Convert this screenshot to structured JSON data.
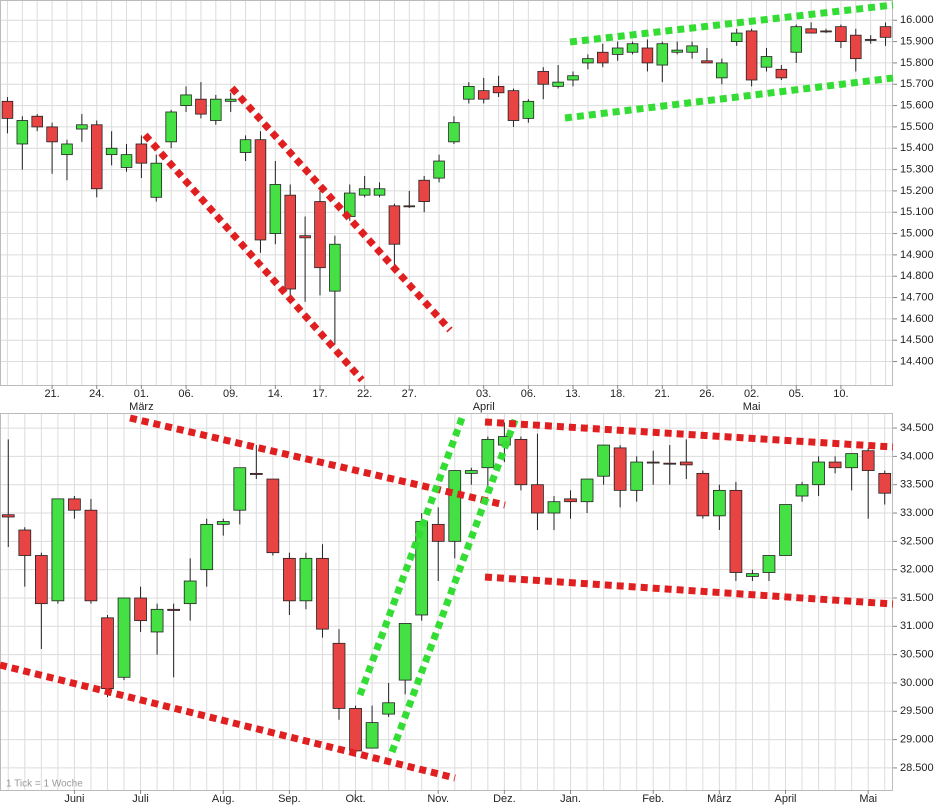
{
  "chart_data": [
    {
      "type": "candlestick",
      "up_color": "#44e044",
      "down_color": "#e84444",
      "grid": true,
      "categories": [
        null,
        null,
        null,
        "21.",
        null,
        null,
        "24.",
        null,
        null,
        "01.",
        null,
        null,
        "06.",
        null,
        null,
        "09.",
        null,
        null,
        "14.",
        null,
        null,
        "17.",
        null,
        null,
        "22.",
        null,
        null,
        "27.",
        null,
        null,
        null,
        null,
        "03.",
        null,
        null,
        "06.",
        null,
        null,
        "13.",
        null,
        null,
        "18.",
        null,
        null,
        "21.",
        null,
        null,
        "26.",
        null,
        null,
        "02.",
        null,
        null,
        "05.",
        null,
        null,
        "10.",
        null,
        null,
        null
      ],
      "x_sublabels": [
        null,
        null,
        null,
        null,
        null,
        null,
        null,
        null,
        null,
        "März",
        null,
        null,
        null,
        null,
        null,
        null,
        null,
        null,
        null,
        null,
        null,
        null,
        null,
        null,
        null,
        null,
        null,
        null,
        null,
        null,
        null,
        null,
        "April",
        null,
        null,
        null,
        null,
        null,
        null,
        null,
        null,
        null,
        null,
        null,
        null,
        null,
        null,
        null,
        null,
        null,
        "Mai",
        null,
        null,
        null,
        null,
        null,
        null,
        null,
        null,
        null
      ],
      "open": [
        15620,
        15420,
        15550,
        15500,
        15370,
        15490,
        15510,
        15370,
        15310,
        15420,
        15170,
        15430,
        15600,
        15630,
        15530,
        15620,
        15380,
        15440,
        15000,
        15180,
        14990,
        15150,
        14730,
        15080,
        15180,
        15180,
        15130,
        15130,
        15250,
        15260,
        15430,
        15630,
        15670,
        15690,
        15670,
        15540,
        15760,
        15690,
        15720,
        15800,
        15850,
        15840,
        15850,
        15870,
        15790,
        15850,
        15850,
        15810,
        15730,
        15900,
        15950,
        15780,
        15770,
        15850,
        15960,
        15950,
        15970,
        15930,
        15910,
        15970
      ],
      "high": [
        15640,
        15550,
        15560,
        15520,
        15440,
        15560,
        15530,
        15480,
        15420,
        15460,
        15370,
        15580,
        15690,
        15710,
        15650,
        15660,
        15460,
        15480,
        15340,
        15230,
        15080,
        15200,
        14990,
        15230,
        15270,
        15240,
        15140,
        15200,
        15270,
        15370,
        15550,
        15710,
        15730,
        15740,
        15680,
        15630,
        15780,
        15790,
        15760,
        15840,
        15890,
        15900,
        15900,
        15910,
        15900,
        15900,
        15900,
        15870,
        15820,
        15960,
        15960,
        15870,
        15790,
        15980,
        15990,
        15960,
        15980,
        15960,
        15930,
        15990
      ],
      "low": [
        15470,
        15300,
        15480,
        15280,
        15250,
        15430,
        15170,
        15320,
        15290,
        15260,
        15150,
        15400,
        15570,
        15540,
        15510,
        15570,
        15340,
        14910,
        14950,
        14710,
        14680,
        14710,
        14480,
        15060,
        15170,
        15170,
        14840,
        15120,
        15100,
        15240,
        15420,
        15610,
        15610,
        15640,
        15500,
        15520,
        15630,
        15680,
        15690,
        15770,
        15780,
        15810,
        15840,
        15760,
        15710,
        15840,
        15820,
        15800,
        15700,
        15880,
        15690,
        15760,
        15720,
        15800,
        15940,
        15940,
        15870,
        15760,
        15890,
        15880
      ],
      "close": [
        15540,
        15530,
        15500,
        15430,
        15420,
        15510,
        15210,
        15400,
        15370,
        15330,
        15330,
        15570,
        15650,
        15560,
        15630,
        15630,
        15440,
        14970,
        15230,
        14740,
        14980,
        14840,
        14950,
        15190,
        15210,
        15210,
        14950,
        15130,
        15150,
        15340,
        15520,
        15690,
        15630,
        15660,
        15530,
        15620,
        15700,
        15710,
        15740,
        15820,
        15800,
        15870,
        15890,
        15800,
        15890,
        15860,
        15880,
        15800,
        15800,
        15940,
        15720,
        15830,
        15730,
        15970,
        15940,
        15950,
        15900,
        15820,
        15910,
        15920
      ],
      "ylim": [
        14290,
        16095
      ],
      "yticks": [
        {
          "value": 14400,
          "label": "14.400"
        },
        {
          "value": 14500,
          "label": "14.500"
        },
        {
          "value": 14600,
          "label": "14.600"
        },
        {
          "value": 14700,
          "label": "14.700"
        },
        {
          "value": 14800,
          "label": "14.800"
        },
        {
          "value": 14900,
          "label": "14.900"
        },
        {
          "value": 15000,
          "label": "15.000"
        },
        {
          "value": 15100,
          "label": "15.100"
        },
        {
          "value": 15200,
          "label": "15.200"
        },
        {
          "value": 15300,
          "label": "15.300"
        },
        {
          "value": 15400,
          "label": "15.400"
        },
        {
          "value": 15500,
          "label": "15.500"
        },
        {
          "value": 15600,
          "label": "15.600"
        },
        {
          "value": 15700,
          "label": "15.700"
        },
        {
          "value": 15800,
          "label": "15.800"
        },
        {
          "value": 15900,
          "label": "15.900"
        },
        {
          "value": 16000,
          "label": "16.000"
        }
      ]
    },
    {
      "type": "candlestick",
      "up_color": "#44e044",
      "down_color": "#e84444",
      "grid": true,
      "annotation": "1 Tick = 1 Woche",
      "categories": [
        null,
        null,
        null,
        null,
        "Juni",
        null,
        null,
        null,
        "Juli",
        null,
        null,
        null,
        null,
        "Aug.",
        null,
        null,
        null,
        "Sep.",
        null,
        null,
        null,
        "Okt.",
        null,
        null,
        null,
        null,
        "Nov.",
        null,
        null,
        null,
        "Dez.",
        null,
        null,
        null,
        "Jan.",
        null,
        null,
        null,
        null,
        "Feb.",
        null,
        null,
        null,
        "März",
        null,
        null,
        null,
        "April",
        null,
        null,
        null,
        null,
        "Mai",
        null
      ],
      "open": [
        32970,
        32700,
        32250,
        31450,
        33250,
        33050,
        31150,
        30100,
        31500,
        30900,
        31300,
        31400,
        32000,
        32800,
        33050,
        33700,
        33600,
        32200,
        31450,
        32200,
        30700,
        29550,
        28850,
        29450,
        30050,
        31200,
        32800,
        32500,
        33700,
        33800,
        34200,
        34300,
        33500,
        33000,
        33250,
        33200,
        33650,
        34150,
        33400,
        33900,
        33880,
        33900,
        33700,
        32950,
        33400,
        31880,
        31950,
        32250,
        33300,
        33500,
        33900,
        33800,
        34100,
        33700
      ],
      "high": [
        34300,
        32750,
        32300,
        33250,
        33300,
        33250,
        31200,
        31500,
        31700,
        31400,
        31400,
        32200,
        32900,
        32900,
        33800,
        34200,
        33600,
        32300,
        32300,
        32450,
        30950,
        29600,
        29600,
        30000,
        31050,
        33000,
        33100,
        33750,
        33800,
        34350,
        34600,
        34350,
        34400,
        33300,
        33400,
        33600,
        34200,
        34200,
        34000,
        34100,
        34200,
        34300,
        33750,
        33500,
        33550,
        32000,
        32250,
        33150,
        33550,
        34000,
        34000,
        34050,
        34150,
        33750
      ],
      "low": [
        32400,
        31700,
        30600,
        31400,
        32900,
        31400,
        29750,
        30050,
        30900,
        30500,
        30100,
        31100,
        31700,
        32600,
        32800,
        33600,
        32250,
        31200,
        31300,
        30800,
        29350,
        28700,
        28850,
        29400,
        29800,
        31100,
        31800,
        32200,
        33500,
        33400,
        33900,
        33400,
        32700,
        32700,
        32900,
        33000,
        33500,
        33100,
        33200,
        33500,
        33500,
        33600,
        32900,
        32700,
        31800,
        31800,
        31800,
        32250,
        33200,
        33300,
        33700,
        33400,
        32900,
        33150
      ],
      "close": [
        32930,
        32250,
        31400,
        33250,
        33050,
        31450,
        29900,
        31500,
        31100,
        31300,
        31280,
        31800,
        32800,
        32850,
        33800,
        33680,
        32300,
        31450,
        32200,
        30950,
        29550,
        28800,
        29300,
        29650,
        31050,
        32850,
        32500,
        33750,
        33750,
        34300,
        34350,
        33500,
        33000,
        33200,
        33200,
        33600,
        34200,
        33400,
        33900,
        33900,
        33880,
        33850,
        32950,
        33400,
        31950,
        31930,
        32250,
        33150,
        33500,
        33900,
        33800,
        34050,
        33750,
        33350
      ],
      "ylim": [
        28110,
        34766
      ],
      "yticks": [
        {
          "value": 28500,
          "label": "28.500"
        },
        {
          "value": 29000,
          "label": "29.000"
        },
        {
          "value": 29500,
          "label": "29.500"
        },
        {
          "value": 30000,
          "label": "30.000"
        },
        {
          "value": 30500,
          "label": "30.500"
        },
        {
          "value": 31000,
          "label": "31.000"
        },
        {
          "value": 31500,
          "label": "31.500"
        },
        {
          "value": 32000,
          "label": "32.000"
        },
        {
          "value": 32500,
          "label": "32.500"
        },
        {
          "value": 33000,
          "label": "33.000"
        },
        {
          "value": 33500,
          "label": "33.500"
        },
        {
          "value": 34000,
          "label": "34.000"
        },
        {
          "value": 34500,
          "label": "34.500"
        }
      ]
    }
  ]
}
